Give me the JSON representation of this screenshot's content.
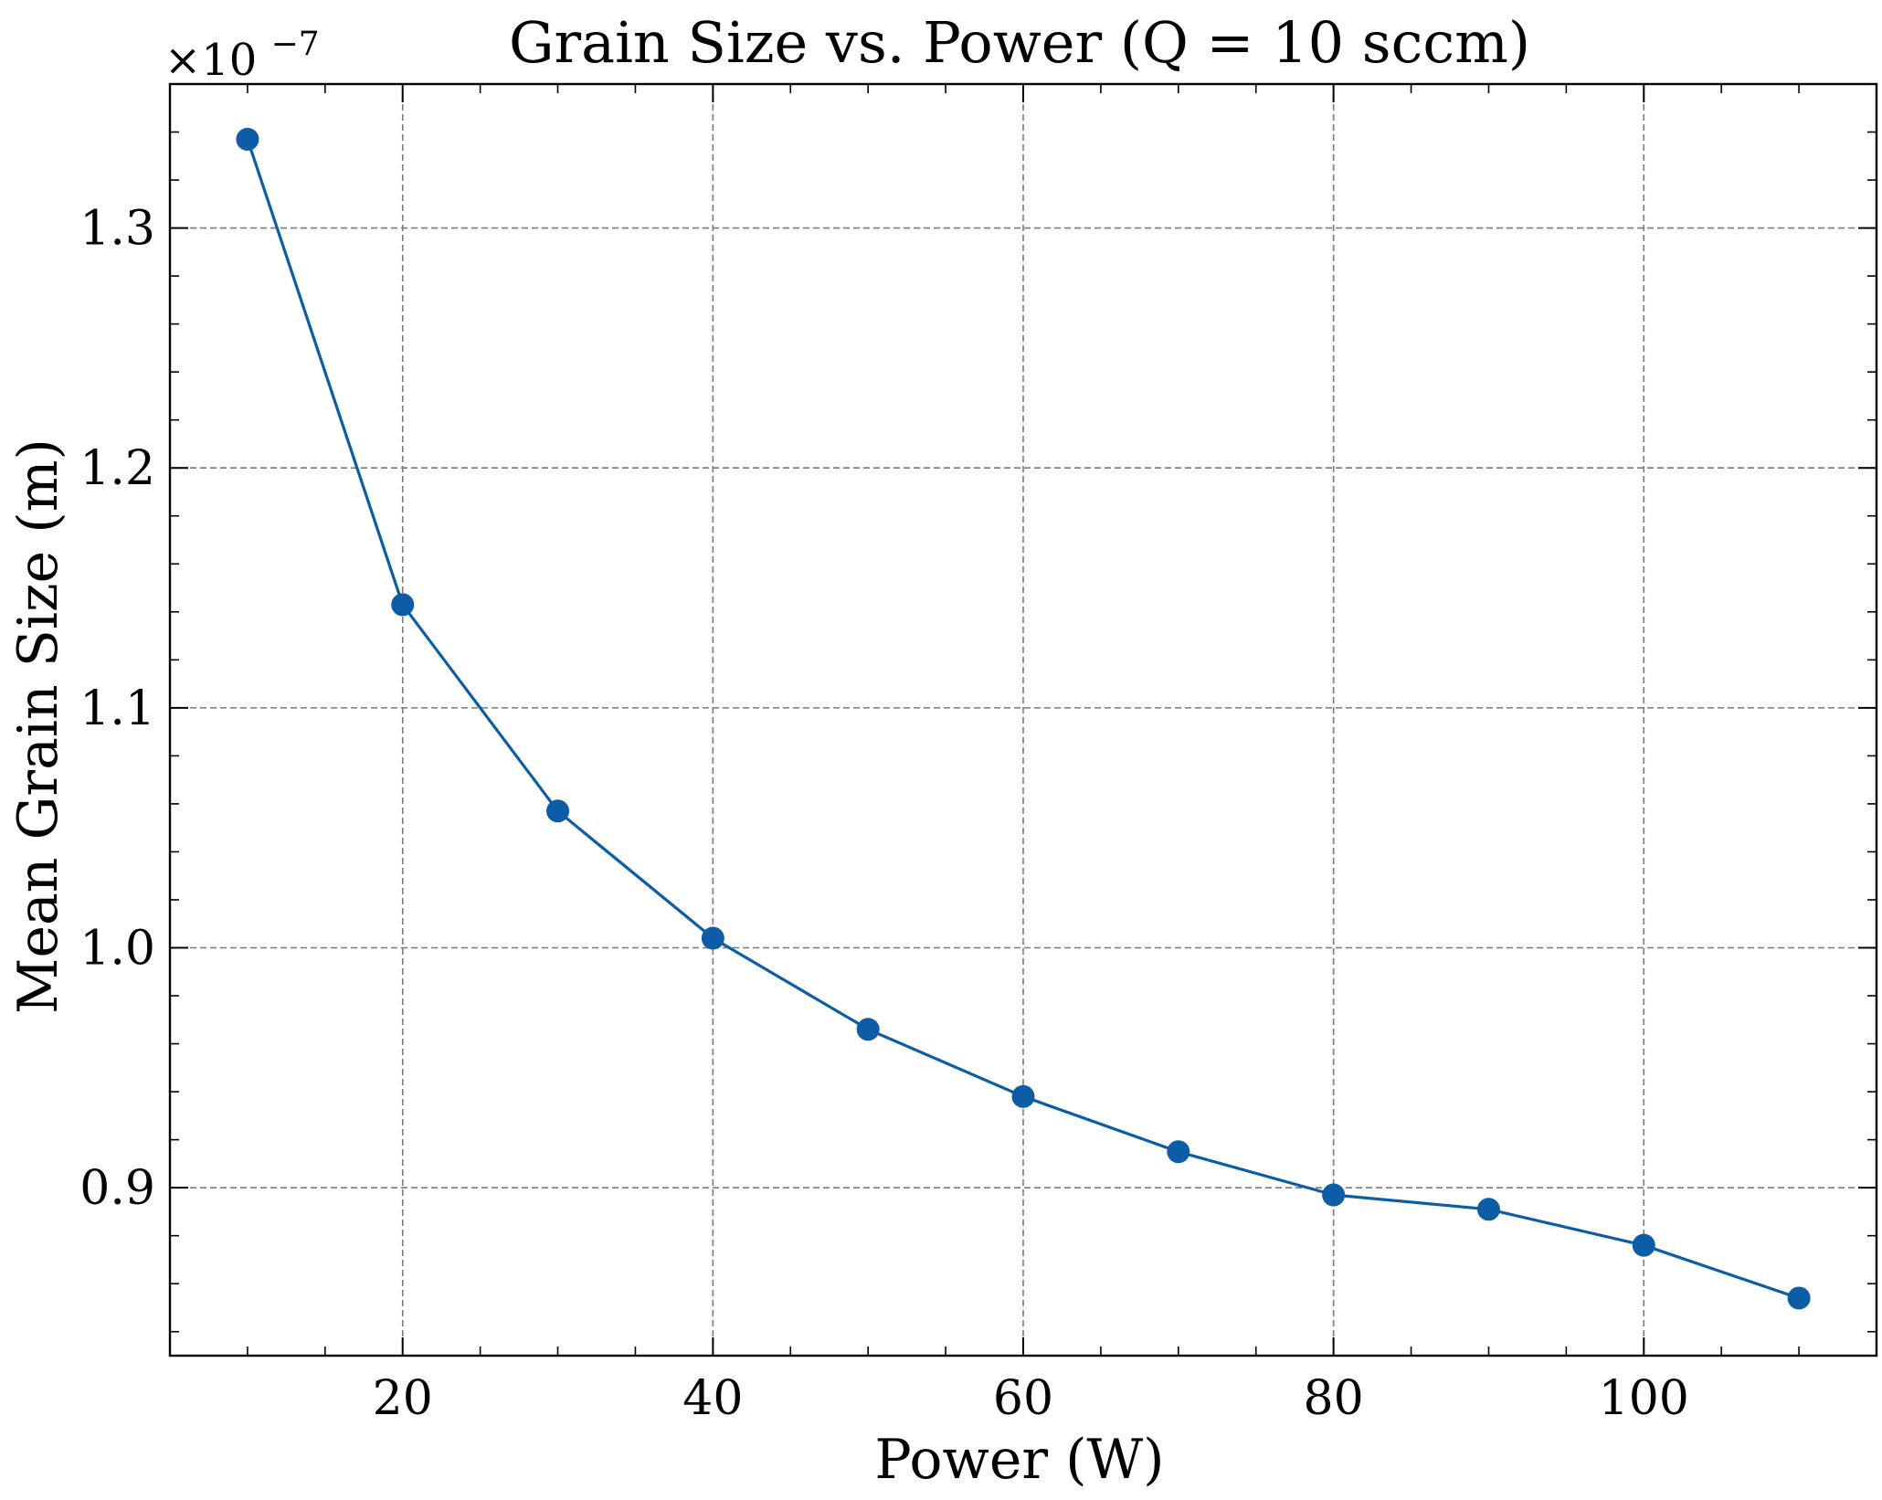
{
  "chart_data": {
    "type": "line",
    "title": "Grain Size vs. Power (Q = 10 sccm)",
    "xlabel": "Power (W)",
    "ylabel": "Mean Grain Size (m)",
    "y_offset_label": {
      "prefix": "×10",
      "exponent": "−7"
    },
    "xlim": [
      5,
      115
    ],
    "ylim": [
      0.83,
      1.36
    ],
    "x_ticks": [
      20,
      40,
      60,
      80,
      100
    ],
    "y_ticks": [
      0.9,
      1.0,
      1.1,
      1.2,
      1.3
    ],
    "x_tick_labels": [
      "20",
      "40",
      "60",
      "80",
      "100"
    ],
    "y_tick_labels": [
      "0.9",
      "1.0",
      "1.1",
      "1.2",
      "1.3"
    ],
    "grid": true,
    "series": [
      {
        "color": "#0C5DA5",
        "x": [
          10,
          20,
          30,
          40,
          50,
          60,
          70,
          80,
          90,
          100,
          110
        ],
        "y": [
          1.337,
          1.143,
          1.057,
          1.004,
          0.966,
          0.938,
          0.915,
          0.897,
          0.891,
          0.876,
          0.854
        ]
      }
    ]
  }
}
